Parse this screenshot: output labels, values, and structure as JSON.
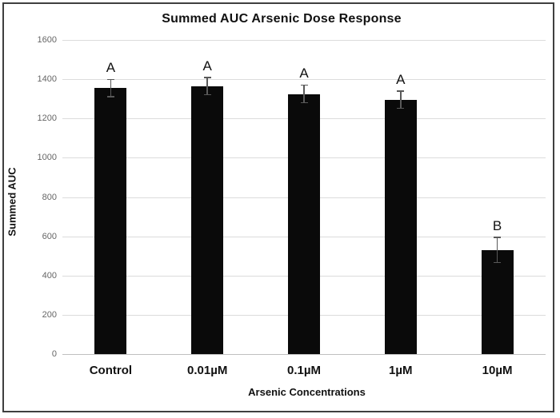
{
  "chart_data": {
    "type": "bar",
    "title": "Summed AUC Arsenic Dose Response",
    "xlabel": "Arsenic Concentrations",
    "ylabel": "Summed AUC",
    "categories": [
      "Control",
      "0.01µM",
      "0.1µM",
      "1µM",
      "10µM"
    ],
    "values": [
      1355,
      1365,
      1325,
      1295,
      530
    ],
    "error_bars": [
      45,
      45,
      45,
      45,
      65
    ],
    "sig_letters": [
      "A",
      "A",
      "A",
      "A",
      "B"
    ],
    "yticks": [
      0,
      200,
      400,
      600,
      800,
      1000,
      1200,
      1400,
      1600
    ],
    "ylim": [
      0,
      1600
    ],
    "grid": true,
    "legend": "none",
    "colors": {
      "bar": "#0a0a0a",
      "error_bar": "#595959",
      "gridline": "#dcdcdc",
      "axis_line": "#bfbfbf",
      "tick_label": "#666666",
      "text": "#111111",
      "frame_border": "#3f3f3f"
    }
  }
}
